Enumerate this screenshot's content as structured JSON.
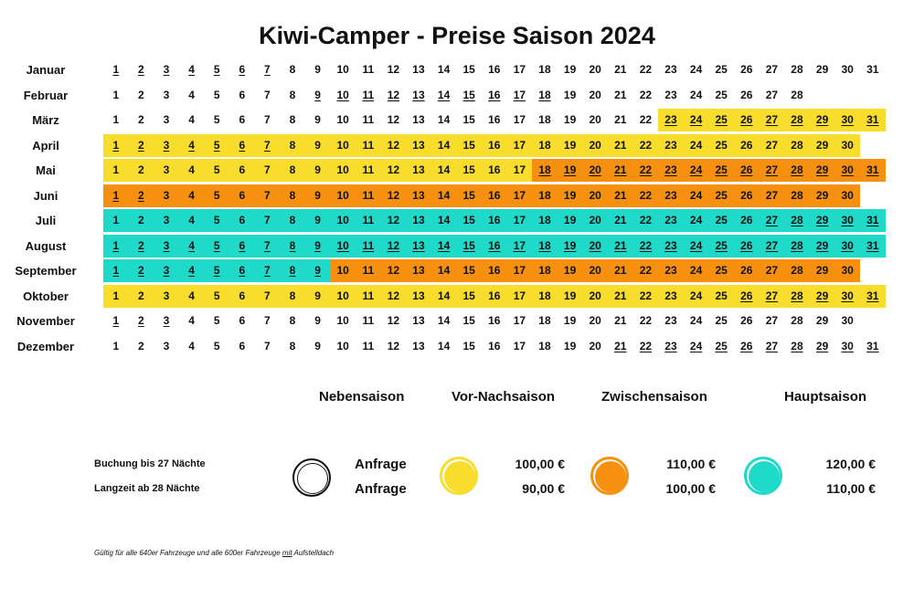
{
  "title": "Kiwi-Camper - Preise Saison 2024",
  "colors": {
    "vor_nach": "#f8dd2c",
    "zwischen": "#f7900e",
    "haupt": "#1fd9c9",
    "neben": "#ffffff"
  },
  "months": [
    {
      "name": "Januar",
      "days": 31,
      "underline": [
        [
          1,
          7
        ]
      ],
      "segments": []
    },
    {
      "name": "Februar",
      "days": 28,
      "underline": [
        [
          9,
          18
        ]
      ],
      "segments": []
    },
    {
      "name": "März",
      "days": 31,
      "underline": [
        [
          23,
          31
        ]
      ],
      "segments": [
        {
          "from": 23,
          "to": 31,
          "season": "vor_nach"
        }
      ]
    },
    {
      "name": "April",
      "days": 30,
      "underline": [
        [
          1,
          7
        ]
      ],
      "segments": [
        {
          "from": 1,
          "to": 30,
          "season": "vor_nach"
        }
      ]
    },
    {
      "name": "Mai",
      "days": 31,
      "underline": [
        [
          18,
          31
        ]
      ],
      "segments": [
        {
          "from": 1,
          "to": 17,
          "season": "vor_nach"
        },
        {
          "from": 18,
          "to": 31,
          "season": "zwischen"
        }
      ]
    },
    {
      "name": "Juni",
      "days": 30,
      "underline": [
        [
          1,
          2
        ]
      ],
      "segments": [
        {
          "from": 1,
          "to": 30,
          "season": "zwischen"
        }
      ]
    },
    {
      "name": "Juli",
      "days": 31,
      "underline": [
        [
          27,
          31
        ]
      ],
      "segments": [
        {
          "from": 1,
          "to": 31,
          "season": "haupt"
        }
      ]
    },
    {
      "name": "August",
      "days": 31,
      "underline": [
        [
          1,
          31
        ]
      ],
      "segments": [
        {
          "from": 1,
          "to": 31,
          "season": "haupt"
        }
      ]
    },
    {
      "name": "September",
      "days": 30,
      "underline": [
        [
          1,
          9
        ]
      ],
      "segments": [
        {
          "from": 1,
          "to": 9,
          "season": "haupt"
        },
        {
          "from": 10,
          "to": 30,
          "season": "zwischen"
        }
      ]
    },
    {
      "name": "Oktober",
      "days": 31,
      "underline": [
        [
          26,
          31
        ]
      ],
      "segments": [
        {
          "from": 1,
          "to": 31,
          "season": "vor_nach"
        }
      ]
    },
    {
      "name": "November",
      "days": 30,
      "underline": [
        [
          1,
          3
        ]
      ],
      "segments": []
    },
    {
      "name": "Dezember",
      "days": 31,
      "underline": [
        [
          21,
          31
        ]
      ],
      "segments": []
    }
  ],
  "legend": {
    "headers": {
      "neben": "Nebensaison",
      "vor_nach": "Vor-Nachsaison",
      "zwischen": "Zwischensaison",
      "haupt": "Hauptsaison"
    },
    "rows": [
      {
        "label": "Buchung bis 27 Nächte",
        "neben": "Anfrage",
        "vor_nach": "100,00 €",
        "zwischen": "110,00 €",
        "haupt": "120,00 €"
      },
      {
        "label": "Langzeit ab 28 Nächte",
        "neben": "Anfrage",
        "vor_nach": "90,00 €",
        "zwischen": "100,00 €",
        "haupt": "110,00 €"
      }
    ]
  },
  "note": "Gültig für alle 640er Fahrzeuge und alle 600er Fahrzeuge mit Aufstelldach"
}
